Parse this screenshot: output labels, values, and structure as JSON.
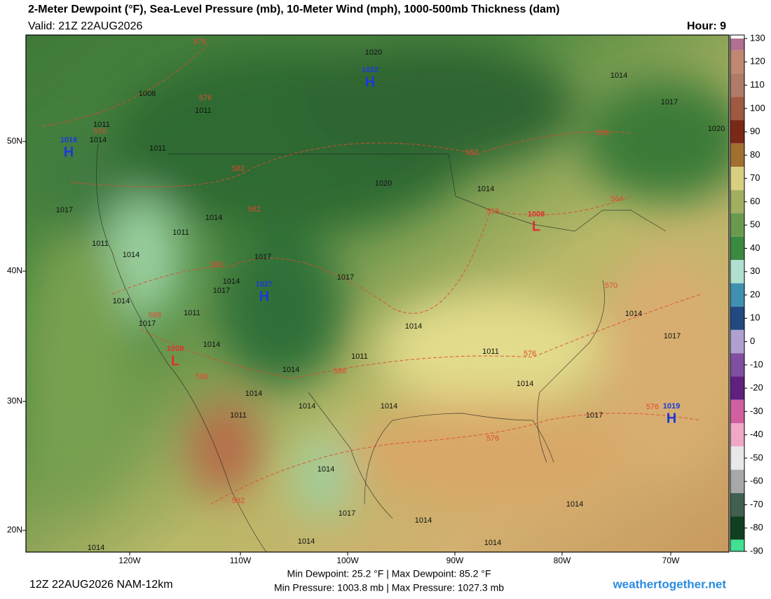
{
  "header": {
    "title": "2-Meter Dewpoint (°F), Sea-Level Pressure (mb), 10-Meter Wind (mph), 1000-500mb Thickness (dam)",
    "valid": "Valid: 21Z 22AUG2026",
    "hour": "Hour: 9"
  },
  "map": {
    "lat_labels": [
      "50N",
      "40N",
      "30N",
      "20N"
    ],
    "lon_labels": [
      "120W",
      "110W",
      "100W",
      "90W",
      "80W",
      "70W"
    ],
    "centers": [
      {
        "letter": "H",
        "pressure": 1022
      },
      {
        "letter": "H",
        "pressure": 1016
      },
      {
        "letter": "H",
        "pressure": 1027
      },
      {
        "letter": "L",
        "pressure": 1008
      },
      {
        "letter": "L",
        "pressure": 1008
      },
      {
        "letter": "H",
        "pressure": 1019
      }
    ],
    "isobar_labels": [
      1020,
      1014,
      1017,
      1020,
      1008,
      1011,
      1011,
      1014,
      1011,
      1020,
      1014,
      1017,
      1011,
      1014,
      1011,
      1014,
      1017,
      1014,
      1017,
      1017,
      1014,
      1011,
      1017,
      1014,
      1014,
      1014,
      1017,
      1011,
      1011,
      1014,
      1014,
      1014,
      1014,
      1014,
      1011,
      1017,
      1014,
      1017,
      1014,
      1014,
      1014,
      1014,
      1014
    ],
    "thickness_labels": [
      570,
      576,
      570,
      582,
      582,
      552,
      558,
      564,
      558,
      588,
      570,
      588,
      576,
      588,
      588,
      576,
      576,
      582
    ]
  },
  "colorbar": {
    "ticks": [
      130,
      120,
      110,
      100,
      90,
      80,
      70,
      60,
      50,
      40,
      30,
      20,
      10,
      0,
      -10,
      -20,
      -30,
      -40,
      -50,
      -60,
      -70,
      -80,
      -90
    ]
  },
  "footer": {
    "run": "12Z 22AUG2026 NAM-12km",
    "dewpoint_range": "Min Dewpoint: 25.2 °F | Max Dewpoint: 85.2 °F",
    "pressure_range": "Min Pressure: 1003.8 mb | Max Pressure: 1027.3 mb",
    "site": "weathertogether.net"
  }
}
